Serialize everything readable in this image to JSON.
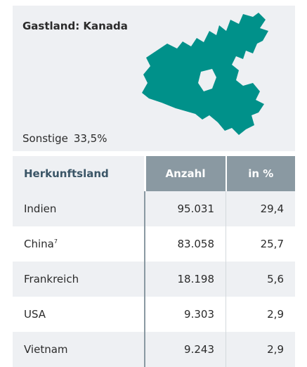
{
  "header": {
    "title": "Gastland: Kanada",
    "other_label": "Sonstige",
    "other_value": "33,5%"
  },
  "table": {
    "columns": [
      "Herkunftsland",
      "Anzahl",
      "in %"
    ],
    "rows": [
      {
        "country": "Indien",
        "count": "95.031",
        "percent": "29,4"
      },
      {
        "country": "China",
        "note": "7",
        "count": "83.058",
        "percent": "25,7"
      },
      {
        "country": "Frankreich",
        "count": "18.198",
        "percent": "5,6"
      },
      {
        "country": "USA",
        "count": "9.303",
        "percent": "2,9"
      },
      {
        "country": "Vietnam",
        "count": "9.243",
        "percent": "2,9"
      }
    ]
  }
}
